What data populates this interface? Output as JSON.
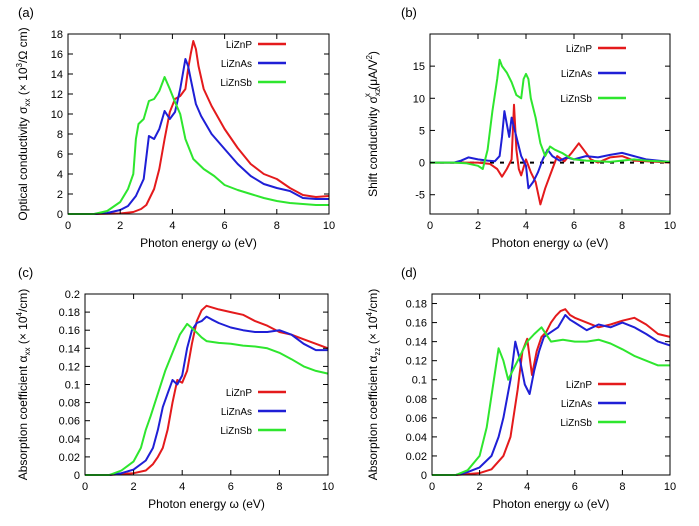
{
  "colors": {
    "LiZnP": "#e41a1c",
    "LiZnAs": "#1f1fd6",
    "LiZnSb": "#2ee62e",
    "reference": "#000000"
  },
  "chart_data": [
    {
      "type": "line",
      "panel_label": "(a)",
      "xlabel": "Photon energy ω (eV)",
      "ylabel_parts": [
        "Optical conductivity σ",
        "xx",
        " (× 10",
        "3",
        "/Ω cm)"
      ],
      "xlim": [
        0,
        10
      ],
      "ylim": [
        0,
        18
      ],
      "xticks": [
        0,
        2,
        4,
        6,
        8,
        10
      ],
      "yticks": [
        0,
        2,
        4,
        6,
        8,
        10,
        12,
        14,
        16,
        18
      ],
      "legend_position": "top-right",
      "series": [
        {
          "name": "LiZnP",
          "color_key": "LiZnP",
          "x": [
            0,
            1,
            2,
            2.5,
            2.8,
            3.0,
            3.3,
            3.5,
            3.7,
            3.9,
            4.1,
            4.3,
            4.5,
            4.6,
            4.7,
            4.8,
            4.9,
            5.0,
            5.2,
            5.5,
            6.0,
            6.5,
            7.0,
            7.5,
            8.0,
            8.5,
            9.0,
            9.5,
            10
          ],
          "y": [
            0,
            0,
            0.05,
            0.2,
            0.5,
            0.9,
            2.5,
            4.5,
            7.5,
            10.2,
            11.5,
            11.8,
            12.5,
            14.5,
            16.0,
            17.3,
            16.5,
            14.8,
            12.5,
            10.8,
            8.5,
            6.6,
            5.0,
            4.0,
            3.5,
            2.6,
            1.9,
            1.7,
            1.8
          ]
        },
        {
          "name": "LiZnAs",
          "color_key": "LiZnAs",
          "x": [
            0,
            1,
            1.5,
            2.0,
            2.3,
            2.6,
            2.9,
            3.1,
            3.3,
            3.5,
            3.7,
            3.9,
            4.1,
            4.3,
            4.5,
            4.6,
            4.7,
            4.9,
            5.1,
            5.5,
            6.0,
            6.5,
            7.0,
            7.5,
            8.0,
            8.5,
            9.0,
            9.5,
            10
          ],
          "y": [
            0,
            0,
            0.1,
            0.4,
            0.8,
            1.8,
            3.5,
            7.8,
            7.5,
            8.5,
            10.3,
            9.5,
            10.2,
            12.5,
            15.5,
            14.8,
            13.5,
            11.0,
            9.8,
            8.0,
            6.5,
            5.0,
            3.8,
            3.0,
            2.6,
            2.3,
            1.6,
            1.5,
            1.5
          ]
        },
        {
          "name": "LiZnSb",
          "color_key": "LiZnSb",
          "x": [
            0,
            1,
            1.5,
            2.0,
            2.3,
            2.5,
            2.6,
            2.7,
            2.9,
            3.1,
            3.3,
            3.5,
            3.7,
            3.9,
            4.1,
            4.3,
            4.5,
            4.8,
            5.2,
            5.6,
            6.0,
            6.5,
            7.0,
            7.5,
            8.0,
            8.5,
            9.0,
            9.5,
            10
          ],
          "y": [
            0,
            0,
            0.3,
            1.2,
            2.5,
            4.0,
            7.5,
            9.0,
            9.5,
            11.3,
            11.5,
            12.3,
            13.7,
            12.5,
            11.2,
            10.0,
            7.5,
            5.5,
            4.5,
            3.8,
            2.9,
            2.4,
            2.0,
            1.6,
            1.3,
            1.1,
            1.0,
            0.9,
            0.9
          ]
        }
      ]
    },
    {
      "type": "line",
      "panel_label": "(b)",
      "xlabel": "Photon energy ω (eV)",
      "ylabel_parts": [
        "Shift conductivity σ",
        "xz",
        "x",
        " (μA/V",
        "2",
        ")"
      ],
      "xlim": [
        0,
        10
      ],
      "ylim": [
        -8,
        20
      ],
      "xticks": [
        0,
        2,
        4,
        6,
        8,
        10
      ],
      "yticks": [
        -5,
        0,
        5,
        10,
        15
      ],
      "legend_position": "top-right",
      "reference_line": {
        "y": 0,
        "style": "dashed",
        "x_from": 0,
        "x_to": 10
      },
      "series": [
        {
          "name": "LiZnP",
          "color_key": "LiZnP",
          "x": [
            0,
            1,
            2,
            2.5,
            2.8,
            3.0,
            3.2,
            3.4,
            3.5,
            3.6,
            3.7,
            3.8,
            4.0,
            4.2,
            4.4,
            4.6,
            4.8,
            5.0,
            5.3,
            5.6,
            5.9,
            6.2,
            6.4,
            6.7,
            7.0,
            7.5,
            8.0,
            8.5,
            9.0,
            9.5,
            10
          ],
          "y": [
            0,
            0,
            0,
            -0.2,
            -1.0,
            -2.2,
            -1.0,
            0.5,
            9.0,
            2.0,
            -1.0,
            -2.0,
            0.5,
            -1.5,
            -3.0,
            -6.5,
            -4.0,
            -2.0,
            1.0,
            0.2,
            1.5,
            3.0,
            2.0,
            0.5,
            0.0,
            0.8,
            1.0,
            0.3,
            0.2,
            0.1,
            0.0
          ]
        },
        {
          "name": "LiZnAs",
          "color_key": "LiZnAs",
          "x": [
            0,
            1,
            1.3,
            1.6,
            2.0,
            2.4,
            2.7,
            2.9,
            3.0,
            3.1,
            3.2,
            3.3,
            3.4,
            3.6,
            3.8,
            4.0,
            4.1,
            4.2,
            4.3,
            4.5,
            4.7,
            4.9,
            5.1,
            5.4,
            5.7,
            6.0,
            6.5,
            7.0,
            7.5,
            8.0,
            8.5,
            9.0,
            9.5,
            10
          ],
          "y": [
            0,
            0,
            0.3,
            0.8,
            0.5,
            0.3,
            0.2,
            1.0,
            4.0,
            8.0,
            6.0,
            4.0,
            7.0,
            4.0,
            1.0,
            -0.5,
            -4.0,
            -3.5,
            -3.0,
            -1.5,
            0.5,
            2.0,
            1.0,
            0.3,
            0.8,
            0.5,
            1.0,
            0.8,
            1.2,
            1.5,
            1.0,
            0.5,
            0.3,
            0.1
          ]
        },
        {
          "name": "LiZnSb",
          "color_key": "LiZnSb",
          "x": [
            0,
            1,
            1.5,
            2.0,
            2.2,
            2.4,
            2.6,
            2.8,
            2.9,
            3.0,
            3.2,
            3.4,
            3.6,
            3.8,
            3.9,
            4.0,
            4.1,
            4.2,
            4.4,
            4.6,
            4.8,
            5.0,
            5.2,
            5.5,
            5.8,
            6.0,
            6.5,
            7.0,
            7.5,
            8.0,
            8.5,
            9.0,
            9.5,
            10
          ],
          "y": [
            0,
            0,
            -0.1,
            -0.5,
            -1.0,
            2.0,
            8.0,
            13.0,
            16.0,
            15.0,
            14.0,
            12.5,
            10.5,
            10.0,
            13.0,
            13.8,
            13.0,
            10.0,
            7.0,
            3.0,
            1.0,
            2.5,
            2.0,
            1.5,
            0.8,
            0.5,
            0.3,
            0.2,
            0.1,
            0.3,
            0.5,
            0.3,
            0.2,
            0.1
          ]
        }
      ]
    },
    {
      "type": "line",
      "panel_label": "(c)",
      "xlabel": "Photon energy ω (eV)",
      "ylabel_parts": [
        "Absorption coefficient α",
        "xx",
        " (× 10",
        "4",
        "/cm)"
      ],
      "xlim": [
        0,
        10
      ],
      "ylim": [
        0,
        0.2
      ],
      "xticks": [
        0,
        2,
        4,
        6,
        8,
        10
      ],
      "yticks": [
        0,
        0.02,
        0.04,
        0.06,
        0.08,
        0.1,
        0.12,
        0.14,
        0.16,
        0.18,
        0.2
      ],
      "legend_position": "center-right",
      "series": [
        {
          "name": "LiZnP",
          "color_key": "LiZnP",
          "x": [
            0,
            1,
            2,
            2.5,
            2.8,
            3.0,
            3.2,
            3.4,
            3.6,
            3.8,
            4.0,
            4.2,
            4.4,
            4.6,
            4.8,
            5.0,
            5.5,
            6.0,
            6.5,
            7.0,
            7.5,
            8.0,
            8.5,
            9.0,
            9.5,
            10
          ],
          "y": [
            0,
            0,
            0.002,
            0.005,
            0.012,
            0.02,
            0.03,
            0.05,
            0.08,
            0.105,
            0.102,
            0.115,
            0.145,
            0.17,
            0.182,
            0.187,
            0.183,
            0.18,
            0.177,
            0.17,
            0.165,
            0.158,
            0.155,
            0.15,
            0.145,
            0.14
          ]
        },
        {
          "name": "LiZnAs",
          "color_key": "LiZnAs",
          "x": [
            0,
            1,
            1.5,
            2.0,
            2.5,
            2.8,
            3.0,
            3.2,
            3.4,
            3.6,
            3.8,
            4.0,
            4.2,
            4.4,
            4.6,
            4.8,
            5.0,
            5.2,
            5.5,
            6.0,
            6.5,
            7.0,
            7.5,
            8.0,
            8.5,
            9.0,
            9.5,
            10
          ],
          "y": [
            0,
            0,
            0.002,
            0.006,
            0.016,
            0.03,
            0.05,
            0.075,
            0.09,
            0.105,
            0.1,
            0.11,
            0.14,
            0.16,
            0.168,
            0.17,
            0.175,
            0.172,
            0.168,
            0.163,
            0.16,
            0.158,
            0.158,
            0.16,
            0.155,
            0.145,
            0.138,
            0.138
          ]
        },
        {
          "name": "LiZnSb",
          "color_key": "LiZnSb",
          "x": [
            0,
            1,
            1.5,
            2.0,
            2.3,
            2.5,
            2.7,
            3.0,
            3.3,
            3.6,
            3.9,
            4.2,
            4.5,
            4.8,
            5.0,
            5.5,
            6.0,
            6.5,
            7.0,
            7.5,
            8.0,
            8.5,
            9.0,
            9.5,
            10
          ],
          "y": [
            0,
            0,
            0.005,
            0.015,
            0.03,
            0.05,
            0.065,
            0.09,
            0.115,
            0.135,
            0.155,
            0.167,
            0.16,
            0.152,
            0.148,
            0.146,
            0.145,
            0.143,
            0.142,
            0.14,
            0.135,
            0.128,
            0.12,
            0.115,
            0.112
          ]
        }
      ]
    },
    {
      "type": "line",
      "panel_label": "(d)",
      "xlabel": "Photon energy ω (eV)",
      "ylabel_parts": [
        "Absorption coefficient α",
        "zz",
        " (× 10",
        "4",
        "/cm)"
      ],
      "xlim": [
        0,
        10
      ],
      "ylim": [
        0,
        0.19
      ],
      "xticks": [
        0,
        2,
        4,
        6,
        8,
        10
      ],
      "yticks": [
        0,
        0.02,
        0.04,
        0.06,
        0.08,
        0.1,
        0.12,
        0.14,
        0.16,
        0.18
      ],
      "legend_position": "center-right",
      "series": [
        {
          "name": "LiZnP",
          "color_key": "LiZnP",
          "x": [
            0,
            1,
            2,
            2.5,
            3.0,
            3.3,
            3.6,
            3.8,
            4.0,
            4.2,
            4.4,
            4.6,
            4.8,
            5.0,
            5.2,
            5.4,
            5.6,
            5.8,
            6.0,
            6.5,
            7.0,
            7.5,
            8.0,
            8.5,
            9.0,
            9.5,
            10
          ],
          "y": [
            0,
            0,
            0.002,
            0.006,
            0.02,
            0.04,
            0.09,
            0.13,
            0.143,
            0.105,
            0.13,
            0.145,
            0.15,
            0.16,
            0.167,
            0.172,
            0.174,
            0.168,
            0.165,
            0.16,
            0.155,
            0.158,
            0.162,
            0.165,
            0.158,
            0.148,
            0.145
          ]
        },
        {
          "name": "LiZnAs",
          "color_key": "LiZnAs",
          "x": [
            0,
            1,
            1.5,
            2.0,
            2.5,
            2.8,
            3.0,
            3.3,
            3.5,
            3.7,
            3.9,
            4.1,
            4.3,
            4.5,
            4.7,
            5.0,
            5.3,
            5.6,
            5.8,
            6.0,
            6.5,
            7.0,
            7.5,
            8.0,
            8.5,
            9.0,
            9.5,
            10
          ],
          "y": [
            0,
            0,
            0.003,
            0.008,
            0.02,
            0.04,
            0.06,
            0.1,
            0.14,
            0.12,
            0.095,
            0.085,
            0.11,
            0.13,
            0.145,
            0.15,
            0.155,
            0.168,
            0.163,
            0.16,
            0.152,
            0.158,
            0.155,
            0.16,
            0.155,
            0.148,
            0.14,
            0.136
          ]
        },
        {
          "name": "LiZnSb",
          "color_key": "LiZnSb",
          "x": [
            0,
            1,
            1.5,
            2.0,
            2.3,
            2.6,
            2.8,
            3.0,
            3.2,
            3.4,
            3.6,
            3.8,
            4.0,
            4.3,
            4.6,
            5.0,
            5.5,
            6.0,
            6.5,
            7.0,
            7.5,
            8.0,
            8.5,
            9.0,
            9.5,
            10
          ],
          "y": [
            0,
            0,
            0.005,
            0.02,
            0.05,
            0.1,
            0.133,
            0.12,
            0.1,
            0.11,
            0.12,
            0.13,
            0.14,
            0.148,
            0.155,
            0.14,
            0.142,
            0.14,
            0.14,
            0.142,
            0.138,
            0.132,
            0.125,
            0.12,
            0.115,
            0.115
          ]
        }
      ]
    }
  ]
}
